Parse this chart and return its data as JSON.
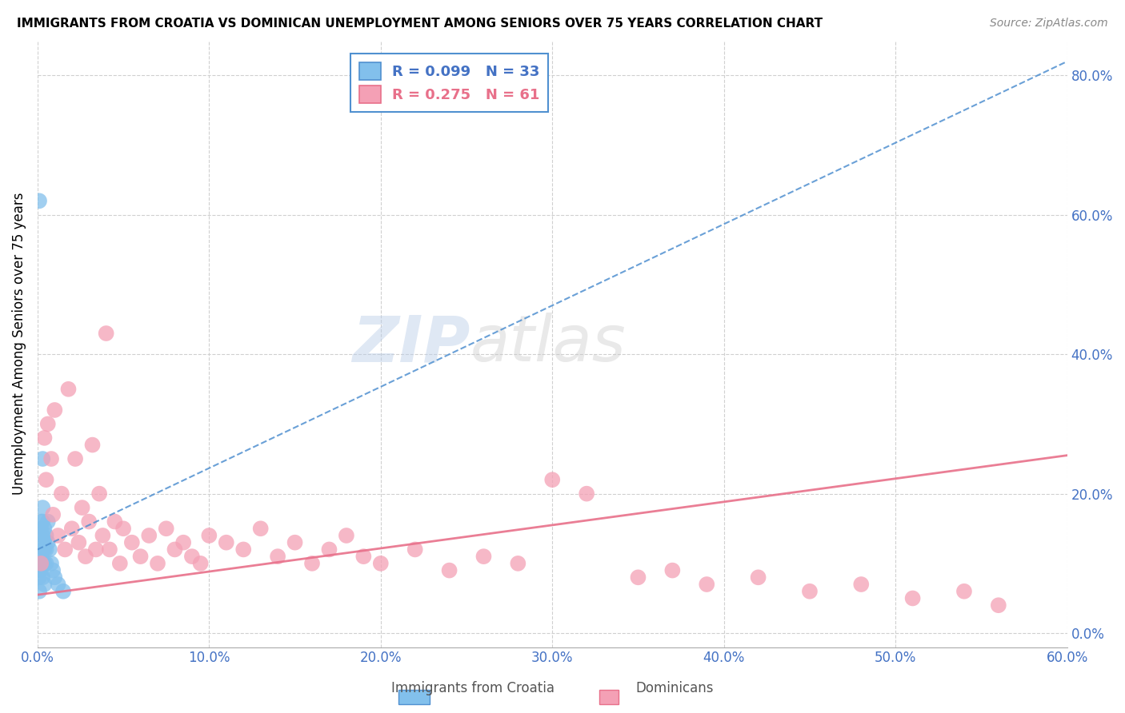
{
  "title": "IMMIGRANTS FROM CROATIA VS DOMINICAN UNEMPLOYMENT AMONG SENIORS OVER 75 YEARS CORRELATION CHART",
  "source": "Source: ZipAtlas.com",
  "ylabel": "Unemployment Among Seniors over 75 years",
  "xlim": [
    0.0,
    0.6
  ],
  "ylim": [
    -0.02,
    0.85
  ],
  "xticks": [
    0.0,
    0.1,
    0.2,
    0.3,
    0.4,
    0.5,
    0.6
  ],
  "yticks": [
    0.0,
    0.2,
    0.4,
    0.6,
    0.8
  ],
  "xtick_labels": [
    "0.0%",
    "10.0%",
    "20.0%",
    "30.0%",
    "40.0%",
    "50.0%",
    "60.0%"
  ],
  "ytick_labels": [
    "0.0%",
    "20.0%",
    "40.0%",
    "60.0%",
    "80.0%"
  ],
  "croatia_color": "#82C0EC",
  "dominican_color": "#F4A0B5",
  "croatia_line_color": "#5090D0",
  "dominican_line_color": "#E8708A",
  "croatia_R": 0.099,
  "croatia_N": 33,
  "dominican_R": 0.275,
  "dominican_N": 61,
  "watermark": "ZIPatlas",
  "background_color": "#ffffff",
  "croatia_x": [
    0.001,
    0.001,
    0.001,
    0.001,
    0.001,
    0.002,
    0.002,
    0.002,
    0.002,
    0.002,
    0.003,
    0.003,
    0.003,
    0.003,
    0.003,
    0.003,
    0.003,
    0.004,
    0.004,
    0.004,
    0.004,
    0.004,
    0.005,
    0.005,
    0.005,
    0.006,
    0.006,
    0.007,
    0.008,
    0.009,
    0.01,
    0.012,
    0.015
  ],
  "croatia_y": [
    0.62,
    0.1,
    0.09,
    0.08,
    0.06,
    0.16,
    0.15,
    0.13,
    0.11,
    0.09,
    0.25,
    0.18,
    0.16,
    0.14,
    0.12,
    0.1,
    0.08,
    0.15,
    0.13,
    0.12,
    0.1,
    0.07,
    0.14,
    0.12,
    0.1,
    0.16,
    0.13,
    0.12,
    0.1,
    0.09,
    0.08,
    0.07,
    0.06
  ],
  "dominican_x": [
    0.002,
    0.004,
    0.005,
    0.006,
    0.008,
    0.009,
    0.01,
    0.012,
    0.014,
    0.016,
    0.018,
    0.02,
    0.022,
    0.024,
    0.026,
    0.028,
    0.03,
    0.032,
    0.034,
    0.036,
    0.038,
    0.04,
    0.042,
    0.045,
    0.048,
    0.05,
    0.055,
    0.06,
    0.065,
    0.07,
    0.075,
    0.08,
    0.085,
    0.09,
    0.095,
    0.1,
    0.11,
    0.12,
    0.13,
    0.14,
    0.15,
    0.16,
    0.17,
    0.18,
    0.19,
    0.2,
    0.22,
    0.24,
    0.26,
    0.28,
    0.3,
    0.32,
    0.35,
    0.37,
    0.39,
    0.42,
    0.45,
    0.48,
    0.51,
    0.54,
    0.56
  ],
  "dominican_y": [
    0.1,
    0.28,
    0.22,
    0.3,
    0.25,
    0.17,
    0.32,
    0.14,
    0.2,
    0.12,
    0.35,
    0.15,
    0.25,
    0.13,
    0.18,
    0.11,
    0.16,
    0.27,
    0.12,
    0.2,
    0.14,
    0.43,
    0.12,
    0.16,
    0.1,
    0.15,
    0.13,
    0.11,
    0.14,
    0.1,
    0.15,
    0.12,
    0.13,
    0.11,
    0.1,
    0.14,
    0.13,
    0.12,
    0.15,
    0.11,
    0.13,
    0.1,
    0.12,
    0.14,
    0.11,
    0.1,
    0.12,
    0.09,
    0.11,
    0.1,
    0.22,
    0.2,
    0.08,
    0.09,
    0.07,
    0.08,
    0.06,
    0.07,
    0.05,
    0.06,
    0.04
  ],
  "croatia_trend_x": [
    0.0,
    0.6
  ],
  "croatia_trend_y": [
    0.12,
    0.82
  ],
  "dominican_trend_x": [
    0.0,
    0.6
  ],
  "dominican_trend_y": [
    0.055,
    0.255
  ]
}
